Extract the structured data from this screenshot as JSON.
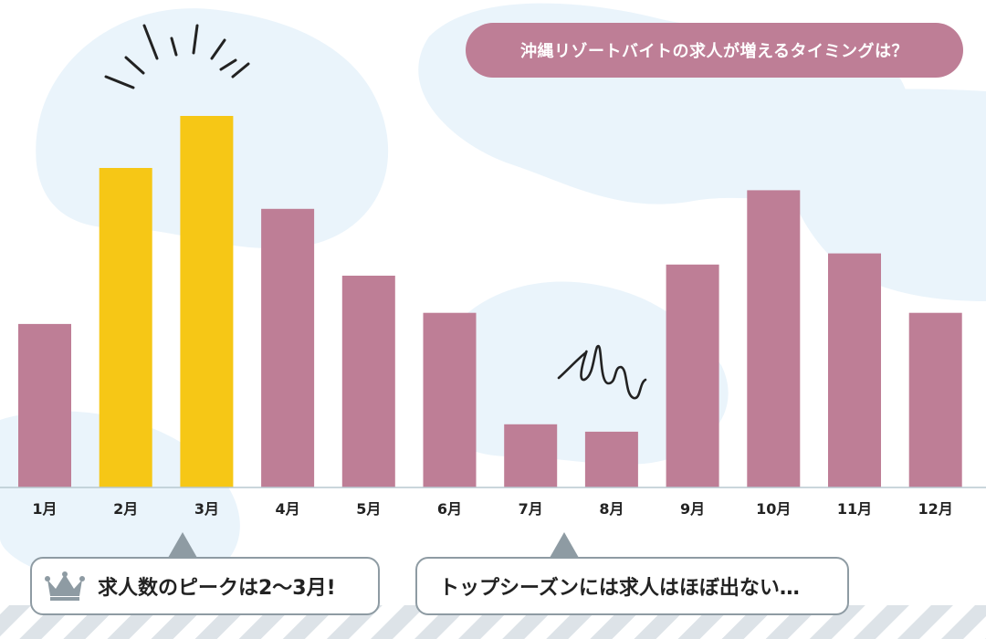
{
  "chart_data": {
    "type": "bar",
    "title": "沖縄リゾートバイトの求人が増えるタイミングは？",
    "categories": [
      "1月",
      "2月",
      "3月",
      "4月",
      "5月",
      "6月",
      "7月",
      "8月",
      "9月",
      "10月",
      "11月",
      "12月"
    ],
    "values": [
      44,
      86,
      100,
      75,
      57,
      47,
      17,
      15,
      60,
      80,
      63,
      47
    ],
    "ylim": [
      0,
      100
    ],
    "highlight": [
      "2月",
      "3月"
    ],
    "grid": false
  },
  "colors": {
    "bar": "#be7e96",
    "highlight": "#f6c716",
    "title_bg": "#be7e96",
    "blob": "#eaf4fb",
    "axis": "#b8c8d0",
    "callout_border": "#8e9ba3",
    "stripes": "#dde3e8"
  },
  "callouts": {
    "peak": "求人数のピークは2〜3月!",
    "low": "トップシーズンには求人はほぼ出ない…"
  },
  "icons": {
    "peak": "crown-icon",
    "burst": "burst-lines-icon",
    "scribble": "scribble-icon"
  }
}
